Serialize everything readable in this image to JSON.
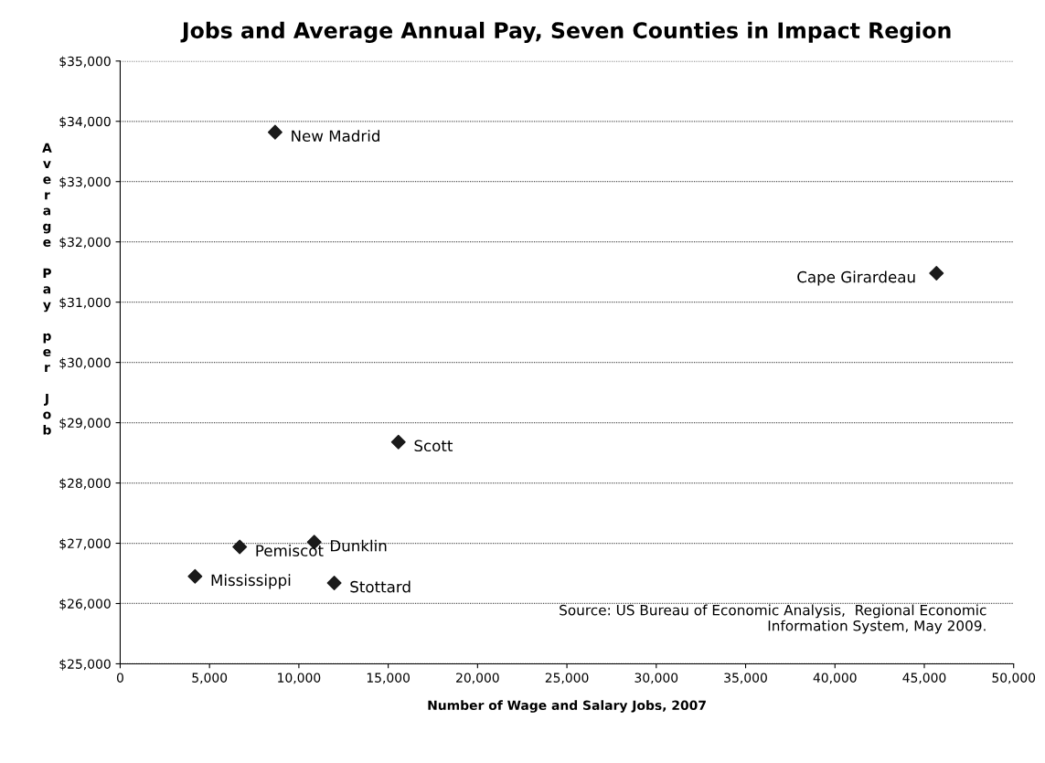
{
  "chart_data": {
    "type": "scatter",
    "title": "Jobs and Average Annual Pay, Seven Counties in Impact Region",
    "xlabel": "Number of Wage and Salary Jobs, 2007",
    "ylabel": "Average Pay per Job",
    "x": [
      8670,
      45680,
      15570,
      6690,
      10860,
      4190,
      11980
    ],
    "series": [
      {
        "color": "#1a1a1a",
        "values": [
          33820,
          31480,
          28680,
          26940,
          27020,
          26450,
          26340
        ]
      }
    ],
    "marker": "diamond",
    "grid": "y",
    "legend": false,
    "xlim": [
      0,
      50000
    ],
    "xticks": [
      {
        "value": 0,
        "label": "0"
      },
      {
        "value": 5000,
        "label": "5,000"
      },
      {
        "value": 10000,
        "label": "10,000"
      },
      {
        "value": 15000,
        "label": "15,000"
      },
      {
        "value": 20000,
        "label": "20,000"
      },
      {
        "value": 25000,
        "label": "25,000"
      },
      {
        "value": 30000,
        "label": "30,000"
      },
      {
        "value": 35000,
        "label": "35,000"
      },
      {
        "value": 40000,
        "label": "40,000"
      },
      {
        "value": 45000,
        "label": "45,000"
      },
      {
        "value": 50000,
        "label": "50,000"
      }
    ],
    "ylim": [
      25000,
      35000
    ],
    "yticks": [
      {
        "value": 25000,
        "label": "$25,000"
      },
      {
        "value": 26000,
        "label": "$26,000"
      },
      {
        "value": 27000,
        "label": "$27,000"
      },
      {
        "value": 28000,
        "label": "$28,000"
      },
      {
        "value": 29000,
        "label": "$29,000"
      },
      {
        "value": 30000,
        "label": "$30,000"
      },
      {
        "value": 31000,
        "label": "$31,000"
      },
      {
        "value": 32000,
        "label": "$32,000"
      },
      {
        "value": 33000,
        "label": "$33,000"
      },
      {
        "value": 34000,
        "label": "$34,000"
      },
      {
        "value": 35000,
        "label": "$35,000"
      }
    ],
    "annotations": [
      {
        "text": "New Madrid",
        "x": 8670,
        "y": 33820
      },
      {
        "text": "Cape Girardeau",
        "x": 45680,
        "y": 31480
      },
      {
        "text": "Scott",
        "x": 15570,
        "y": 28680
      },
      {
        "text": "Pemiscot",
        "x": 6690,
        "y": 26940
      },
      {
        "text": "Dunklin",
        "x": 10860,
        "y": 27020
      },
      {
        "text": "Mississippi",
        "x": 4190,
        "y": 26450
      },
      {
        "text": "Stottard",
        "x": 11980,
        "y": 26340
      },
      "Source: US Bureau of Economic Analysis,  Regional Economic\nInformation System, May 2009."
    ]
  }
}
